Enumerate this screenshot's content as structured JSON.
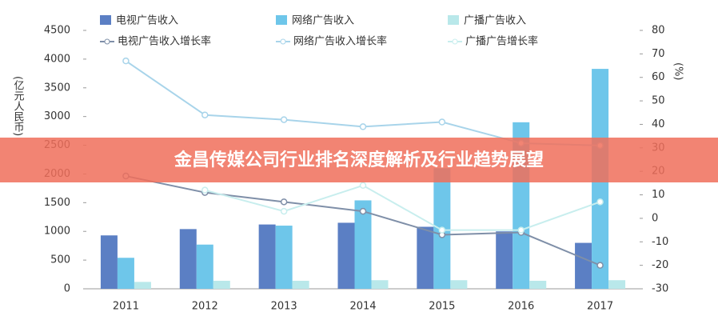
{
  "chart_data": {
    "type": "bar_line",
    "categories": [
      "2011",
      "2012",
      "2013",
      "2014",
      "2015",
      "2016",
      "2017"
    ],
    "y_label": "(亿元人民币)",
    "y2_label": "(%)",
    "ylim": [
      0,
      4500
    ],
    "yticks": [
      0,
      500,
      1000,
      1500,
      2000,
      2500,
      3000,
      3500,
      4000,
      4500
    ],
    "y2lim": [
      -30,
      80
    ],
    "y2ticks": [
      -30,
      -20,
      -10,
      0,
      10,
      20,
      30,
      40,
      50,
      60,
      70,
      80
    ],
    "grid": false,
    "series": [
      {
        "name": "电视广告收入",
        "kind": "bar",
        "color": "#5b7fc4",
        "values": [
          930,
          1040,
          1120,
          1150,
          1080,
          1000,
          800
        ]
      },
      {
        "name": "网络广告收入",
        "kind": "bar",
        "color": "#6ec6ea",
        "values": [
          540,
          770,
          1100,
          1540,
          2100,
          2900,
          3830
        ]
      },
      {
        "name": "广播广告收入",
        "kind": "bar",
        "color": "#b9e8ea",
        "values": [
          120,
          140,
          140,
          150,
          150,
          140,
          150
        ]
      },
      {
        "name": "电视广告收入增长率",
        "kind": "line",
        "axis": "y2",
        "color": "#7f8fa8",
        "values": [
          18,
          11,
          7,
          3,
          -7,
          -6,
          -20
        ]
      },
      {
        "name": "网络广告收入增长率",
        "kind": "line",
        "axis": "y2",
        "color": "#a8d4ea",
        "values": [
          67,
          44,
          42,
          39,
          41,
          32,
          31
        ]
      },
      {
        "name": "广播广告增长率",
        "kind": "line",
        "axis": "y2",
        "color": "#c8eeee",
        "values": [
          null,
          12,
          3,
          14,
          -5,
          -5,
          7
        ]
      }
    ]
  },
  "banner": "金昌传媒公司行业排名深度解析及行业趋势展望"
}
